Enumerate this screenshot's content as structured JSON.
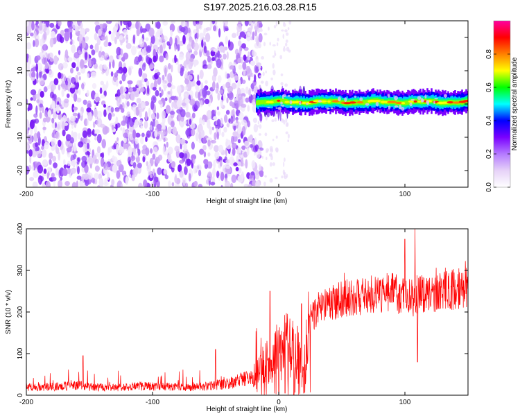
{
  "title": "S197.2025.216.03.28.R15",
  "chart_data": [
    {
      "type": "heatmap",
      "xlabel": "Height of straight line (km)",
      "ylabel": "Frequency (Hz)",
      "xlim": [
        -200,
        150
      ],
      "ylim": [
        -25,
        25
      ],
      "xticks": [
        -200,
        -100,
        0,
        100
      ],
      "yticks": [
        -20,
        -10,
        0,
        10,
        20
      ],
      "grid": false,
      "colorbar": {
        "label": "Normalized spectral amplitude",
        "range": [
          0,
          1
        ],
        "ticks": [
          "0.0",
          "0.2",
          "0.4",
          "0.6",
          "0.8"
        ],
        "colors": [
          "#ffffff",
          "#e6d2f8",
          "#b47aff",
          "#7a00ff",
          "#0000ff",
          "#00ffff",
          "#00ff00",
          "#ffff00",
          "#ff8000",
          "#ff0000",
          "#ff00a0"
        ]
      },
      "features": {
        "noise_region_x": [
          -200,
          -18
        ],
        "transition_x": [
          -20,
          20
        ],
        "signal_band_x": [
          -18,
          150
        ],
        "signal_band_center_freq": 0.5,
        "signal_band_halfwidth_freq": 1.5
      }
    },
    {
      "type": "line",
      "xlabel": "Height of straight line (km)",
      "ylabel": "SNR (10 * v/v)",
      "xlim": [
        -200,
        150
      ],
      "ylim": [
        0,
        400
      ],
      "xticks": [
        -200,
        -100,
        0,
        100
      ],
      "yticks": [
        0,
        100,
        200,
        300,
        400
      ],
      "grid": false,
      "series": [
        {
          "color": "#ff0000",
          "x": [
            -200,
            -180,
            -155,
            -150,
            -130,
            -110,
            -90,
            -70,
            -55,
            -50,
            -45,
            -30,
            -25,
            -20,
            -15,
            -10,
            -8,
            -5,
            0,
            3,
            5,
            10,
            15,
            18,
            20,
            25,
            30,
            40,
            50,
            60,
            70,
            80,
            90,
            95,
            100,
            105,
            108,
            110,
            112,
            115,
            120,
            130,
            140,
            150
          ],
          "baseline": [
            20,
            20,
            25,
            20,
            18,
            22,
            20,
            18,
            22,
            25,
            25,
            35,
            40,
            45,
            55,
            80,
            70,
            90,
            110,
            90,
            120,
            110,
            100,
            60,
            50,
            185,
            200,
            220,
            230,
            235,
            240,
            245,
            250,
            240,
            245,
            240,
            220,
            250,
            245,
            240,
            245,
            250,
            255,
            260
          ],
          "peaks": [
            {
              "x": -155,
              "y": 95
            },
            {
              "x": -50,
              "y": 110
            },
            {
              "x": -7,
              "y": 250
            },
            {
              "x": 18,
              "y": 220
            },
            {
              "x": 100,
              "y": 375
            },
            {
              "x": 108,
              "y": 400
            },
            {
              "x": 110,
              "y": 400
            }
          ],
          "dips": [
            {
              "x": 0,
              "y": 0
            },
            {
              "x": 5,
              "y": 5
            },
            {
              "x": 12,
              "y": 0
            },
            {
              "x": 20,
              "y": 5
            },
            {
              "x": 110,
              "y": 80
            }
          ]
        }
      ]
    }
  ]
}
